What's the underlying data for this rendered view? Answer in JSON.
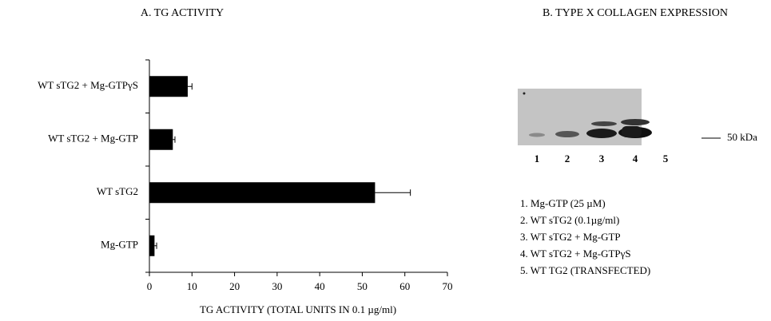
{
  "chart_data": {
    "type": "bar",
    "orientation": "horizontal",
    "title": "A. TG ACTIVITY",
    "categories": [
      "WT sTG2 + Mg-GTPγS",
      "WT sTG2 + Mg-GTP",
      "WT sTG2",
      "Mg-GTP"
    ],
    "values": [
      9,
      5.5,
      53,
      1.2
    ],
    "errors": [
      1,
      0.5,
      8.3,
      0.5
    ],
    "color": "#000000",
    "xlim": [
      0,
      70
    ],
    "xticks": [
      0,
      10,
      20,
      30,
      40,
      50,
      60,
      70
    ],
    "xlabel": "TG ACTIVITY (TOTAL UNITS IN  0.1 µg/ml)"
  },
  "blot": {
    "title": "B. TYPE X COLLAGEN EXPRESSION",
    "marker": "50 kDa",
    "lanes": [
      "1",
      "2",
      "3",
      "4",
      "5"
    ],
    "legend": [
      "1. Mg-GTP (25 µM)",
      "2. WT  sTG2 (0.1µg/ml)",
      "3. WT sTG2 + Mg-GTP",
      "4. WT sTG2 + Mg-GTPγS",
      "5. WT TG2 (TRANSFECTED)"
    ]
  }
}
